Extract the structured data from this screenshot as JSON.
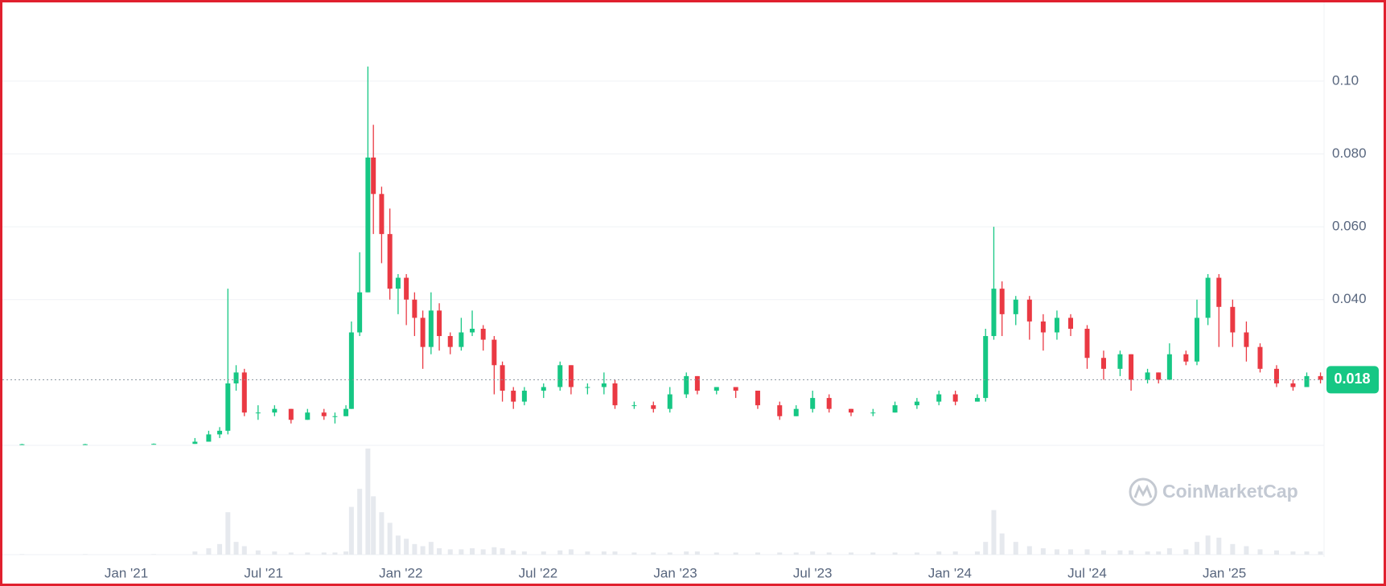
{
  "chart_data": {
    "type": "candlestick",
    "x": [
      2020.62,
      2020.85,
      2021.1,
      2021.25,
      2021.3,
      2021.34,
      2021.37,
      2021.4,
      2021.43,
      2021.48,
      2021.54,
      2021.6,
      2021.66,
      2021.72,
      2021.76,
      2021.8,
      2021.82,
      2021.85,
      2021.88,
      2021.9,
      2021.93,
      2021.96,
      2021.99,
      2022.02,
      2022.05,
      2022.08,
      2022.11,
      2022.14,
      2022.18,
      2022.22,
      2022.26,
      2022.3,
      2022.34,
      2022.37,
      2022.41,
      2022.45,
      2022.52,
      2022.58,
      2022.62,
      2022.68,
      2022.74,
      2022.78,
      2022.85,
      2022.92,
      2022.98,
      2023.04,
      2023.08,
      2023.15,
      2023.22,
      2023.3,
      2023.38,
      2023.44,
      2023.5,
      2023.56,
      2023.64,
      2023.72,
      2023.8,
      2023.88,
      2023.96,
      2024.02,
      2024.1,
      2024.13,
      2024.16,
      2024.19,
      2024.24,
      2024.29,
      2024.34,
      2024.39,
      2024.44,
      2024.5,
      2024.56,
      2024.62,
      2024.66,
      2024.72,
      2024.76,
      2024.8,
      2024.86,
      2024.9,
      2024.94,
      2024.98,
      2025.03,
      2025.08,
      2025.13,
      2025.19,
      2025.25,
      2025.3,
      2025.35
    ],
    "open": [
      0.0003,
      0.0003,
      0.0003,
      0.0004,
      0.001,
      0.003,
      0.004,
      0.017,
      0.02,
      0.009,
      0.009,
      0.01,
      0.007,
      0.009,
      0.008,
      0.008,
      0.01,
      0.031,
      0.042,
      0.079,
      0.069,
      0.058,
      0.043,
      0.046,
      0.04,
      0.035,
      0.027,
      0.037,
      0.03,
      0.027,
      0.031,
      0.032,
      0.029,
      0.022,
      0.015,
      0.012,
      0.015,
      0.016,
      0.022,
      0.016,
      0.016,
      0.017,
      0.011,
      0.011,
      0.01,
      0.014,
      0.019,
      0.015,
      0.016,
      0.015,
      0.011,
      0.008,
      0.01,
      0.013,
      0.01,
      0.009,
      0.009,
      0.011,
      0.012,
      0.014,
      0.012,
      0.013,
      0.03,
      0.043,
      0.036,
      0.04,
      0.034,
      0.031,
      0.035,
      0.032,
      0.024,
      0.021,
      0.025,
      0.018,
      0.02,
      0.018,
      0.025,
      0.023,
      0.035,
      0.046,
      0.038,
      0.031,
      0.027,
      0.021,
      0.017,
      0.016,
      0.019
    ],
    "high": [
      0.0004,
      0.0004,
      0.0005,
      0.002,
      0.004,
      0.005,
      0.043,
      0.022,
      0.021,
      0.011,
      0.011,
      0.01,
      0.01,
      0.01,
      0.009,
      0.011,
      0.034,
      0.053,
      0.104,
      0.088,
      0.071,
      0.065,
      0.047,
      0.047,
      0.042,
      0.037,
      0.042,
      0.039,
      0.031,
      0.035,
      0.037,
      0.033,
      0.03,
      0.023,
      0.016,
      0.016,
      0.017,
      0.023,
      0.022,
      0.017,
      0.02,
      0.018,
      0.012,
      0.012,
      0.016,
      0.02,
      0.019,
      0.016,
      0.016,
      0.015,
      0.012,
      0.011,
      0.015,
      0.014,
      0.01,
      0.01,
      0.012,
      0.013,
      0.015,
      0.015,
      0.014,
      0.032,
      0.06,
      0.045,
      0.041,
      0.041,
      0.036,
      0.037,
      0.036,
      0.033,
      0.026,
      0.026,
      0.025,
      0.021,
      0.02,
      0.028,
      0.026,
      0.04,
      0.047,
      0.047,
      0.04,
      0.034,
      0.028,
      0.022,
      0.018,
      0.02,
      0.02
    ],
    "low": [
      0.0002,
      0.0002,
      0.0003,
      0.0004,
      0.001,
      0.002,
      0.003,
      0.015,
      0.008,
      0.007,
      0.008,
      0.006,
      0.007,
      0.007,
      0.006,
      0.008,
      0.01,
      0.03,
      0.042,
      0.058,
      0.05,
      0.04,
      0.036,
      0.033,
      0.03,
      0.021,
      0.025,
      0.026,
      0.025,
      0.026,
      0.03,
      0.026,
      0.014,
      0.012,
      0.01,
      0.011,
      0.013,
      0.015,
      0.014,
      0.014,
      0.014,
      0.01,
      0.01,
      0.009,
      0.009,
      0.013,
      0.014,
      0.014,
      0.013,
      0.01,
      0.007,
      0.008,
      0.009,
      0.009,
      0.008,
      0.008,
      0.009,
      0.01,
      0.011,
      0.011,
      0.012,
      0.012,
      0.029,
      0.03,
      0.033,
      0.029,
      0.026,
      0.029,
      0.03,
      0.021,
      0.018,
      0.019,
      0.015,
      0.017,
      0.017,
      0.018,
      0.022,
      0.022,
      0.033,
      0.027,
      0.027,
      0.023,
      0.02,
      0.016,
      0.015,
      0.016,
      0.017
    ],
    "close": [
      0.0003,
      0.0003,
      0.0004,
      0.001,
      0.003,
      0.004,
      0.017,
      0.02,
      0.009,
      0.009,
      0.01,
      0.007,
      0.009,
      0.008,
      0.008,
      0.01,
      0.031,
      0.042,
      0.079,
      0.069,
      0.058,
      0.043,
      0.046,
      0.04,
      0.035,
      0.027,
      0.037,
      0.03,
      0.027,
      0.031,
      0.032,
      0.029,
      0.022,
      0.015,
      0.012,
      0.015,
      0.016,
      0.022,
      0.016,
      0.016,
      0.017,
      0.011,
      0.011,
      0.01,
      0.014,
      0.019,
      0.015,
      0.016,
      0.015,
      0.011,
      0.008,
      0.01,
      0.013,
      0.01,
      0.009,
      0.009,
      0.011,
      0.012,
      0.014,
      0.012,
      0.013,
      0.03,
      0.043,
      0.036,
      0.04,
      0.034,
      0.031,
      0.035,
      0.032,
      0.024,
      0.021,
      0.025,
      0.018,
      0.02,
      0.018,
      0.025,
      0.023,
      0.035,
      0.046,
      0.038,
      0.031,
      0.027,
      0.021,
      0.017,
      0.016,
      0.019,
      0.018
    ],
    "volume": [
      0.5,
      0.5,
      0.5,
      3,
      6,
      10,
      40,
      12,
      8,
      4,
      3,
      2,
      2,
      2,
      2,
      3,
      45,
      62,
      100,
      55,
      40,
      30,
      18,
      15,
      10,
      8,
      12,
      6,
      5,
      5,
      6,
      5,
      7,
      6,
      4,
      3,
      3,
      4,
      5,
      3,
      3,
      3,
      2,
      2,
      2,
      3,
      3,
      2,
      2,
      2,
      2,
      2,
      3,
      2,
      2,
      2,
      2,
      2,
      3,
      3,
      3,
      12,
      42,
      20,
      12,
      8,
      6,
      5,
      5,
      5,
      4,
      4,
      4,
      3,
      3,
      6,
      5,
      12,
      18,
      16,
      10,
      8,
      5,
      4,
      3,
      3,
      3
    ],
    "volume_lim": [
      0,
      100
    ],
    "up_color": "#16c784",
    "down_color": "#ea3943",
    "volume_color": "#e6e9ee",
    "xlim": [
      2020.575,
      2025.363
    ],
    "xticks": [
      {
        "value": 2021.0,
        "label": "Jan '21"
      },
      {
        "value": 2021.5,
        "label": "Jul '21"
      },
      {
        "value": 2022.0,
        "label": "Jan '22"
      },
      {
        "value": 2022.5,
        "label": "Jul '22"
      },
      {
        "value": 2023.0,
        "label": "Jan '23"
      },
      {
        "value": 2023.5,
        "label": "Jul '23"
      },
      {
        "value": 2024.0,
        "label": "Jan '24"
      },
      {
        "value": 2024.5,
        "label": "Jul '24"
      },
      {
        "value": 2025.0,
        "label": "Jan '25"
      }
    ],
    "ylim": [
      0,
      0.1196
    ],
    "yticks": [
      {
        "value": 0.1,
        "label": "0.10"
      },
      {
        "value": 0.08,
        "label": "0.080"
      },
      {
        "value": 0.06,
        "label": "0.060"
      },
      {
        "value": 0.04,
        "label": "0.040"
      }
    ],
    "grid": true,
    "last_price": 0.018,
    "watermark": "CoinMarketCap"
  }
}
